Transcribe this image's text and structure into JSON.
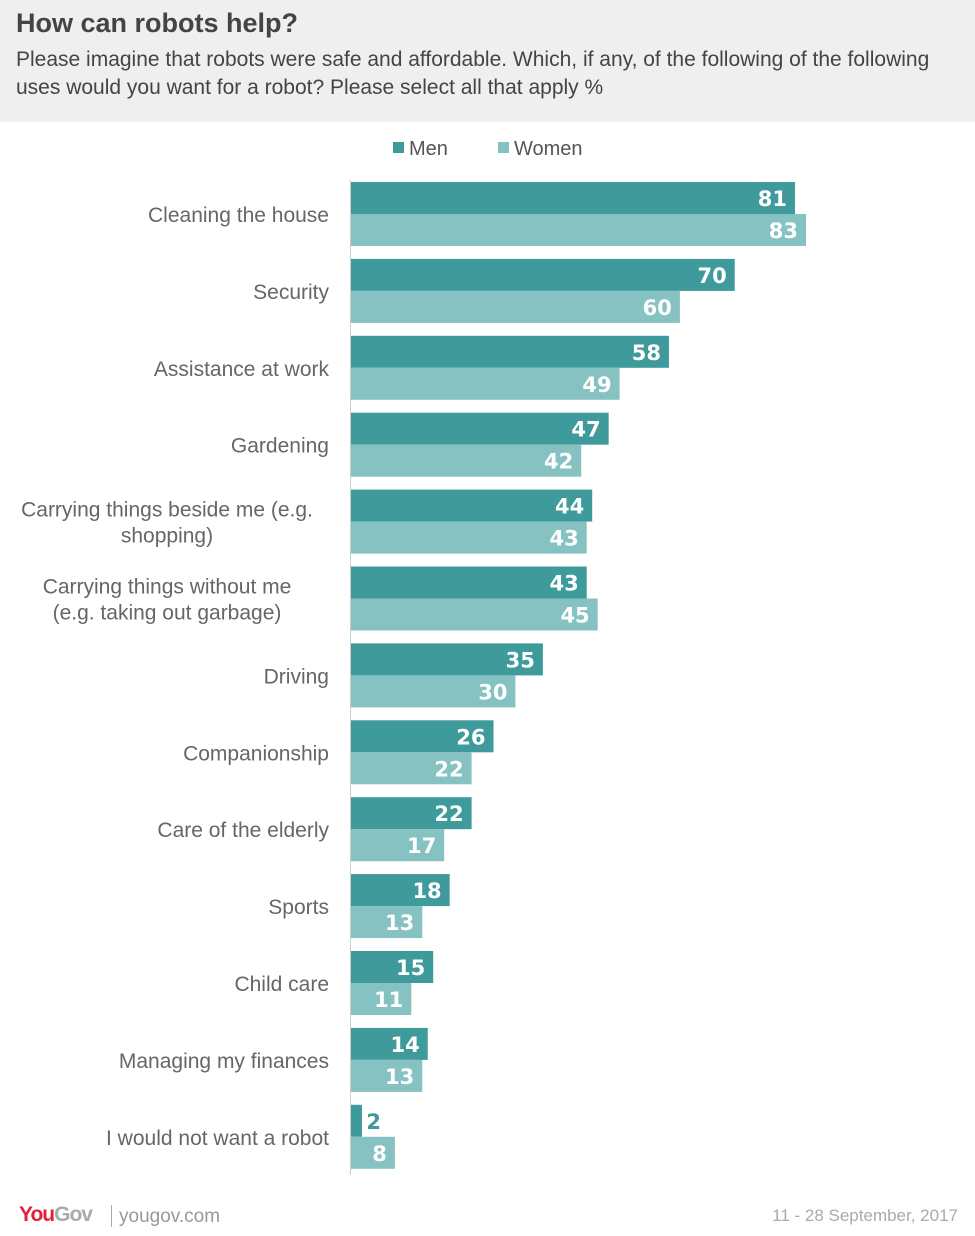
{
  "header": {
    "title": "How can robots help?",
    "subtitle": "Please imagine that robots were safe and affordable. Which, if any, of the following of the following uses would you want for a robot? Please select all that apply %"
  },
  "legend": {
    "men": "Men",
    "women": "Women"
  },
  "colors": {
    "men": "#3f9a9b",
    "women": "#87c2c3",
    "axis": "#cccccc",
    "label": "#666666",
    "value_text": "#ffffff",
    "value_text_outside": "#3f9a9b",
    "brand_you": "#e0203c",
    "brand_gov": "#aaaaaa"
  },
  "chart_data": {
    "type": "bar",
    "orientation": "horizontal",
    "categories": [
      [
        "Cleaning the house"
      ],
      [
        "Security"
      ],
      [
        "Assistance at work"
      ],
      [
        "Gardening"
      ],
      [
        "Carrying things beside me (e.g.",
        "shopping)"
      ],
      [
        "Carrying things without me",
        "(e.g. taking out garbage)"
      ],
      [
        "Driving"
      ],
      [
        "Companionship"
      ],
      [
        "Care of the elderly"
      ],
      [
        "Sports"
      ],
      [
        "Child care"
      ],
      [
        "Managing my finances"
      ],
      [
        "I would not want a robot"
      ]
    ],
    "series": [
      {
        "name": "Men",
        "values": [
          81,
          70,
          58,
          47,
          44,
          43,
          35,
          26,
          22,
          18,
          15,
          14,
          2
        ]
      },
      {
        "name": "Women",
        "values": [
          83,
          60,
          49,
          42,
          43,
          45,
          30,
          22,
          17,
          13,
          11,
          13,
          8
        ]
      }
    ],
    "xlim": [
      0,
      83
    ],
    "legend_position": "top",
    "grid": false
  },
  "footer": {
    "logo_you": "You",
    "logo_gov": "Gov",
    "site": "yougov.com",
    "date": "11 - 28 September, 2017"
  }
}
